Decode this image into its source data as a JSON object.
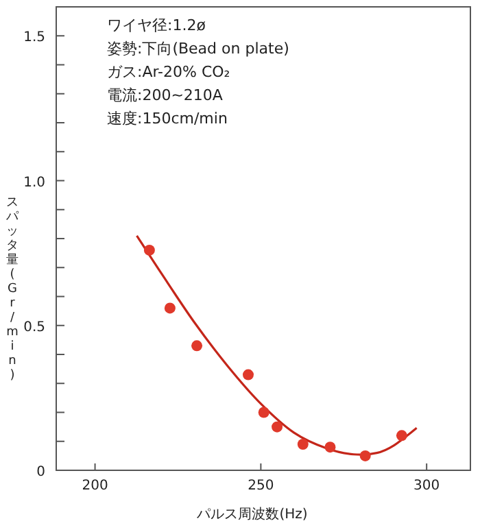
{
  "chart_data": {
    "type": "scatter",
    "xlabel": "パルス周波数(Hz)",
    "ylabel": "スパッタ量(Gr/min)",
    "annotations": [
      "ワイヤ径:1.2ø",
      "姿勢:下向(Bead on plate)",
      "ガス:Ar-20% CO₂",
      "電流:200~210A",
      "速度:150cm/min"
    ],
    "xlim": [
      188.3,
      313.2
    ],
    "ylim": [
      0,
      1.6
    ],
    "xticks": [
      200,
      250,
      300
    ],
    "yticks": [
      {
        "value": 0,
        "label": "0"
      },
      {
        "value": 0.1,
        "label": null
      },
      {
        "value": 0.2,
        "label": null
      },
      {
        "value": 0.3,
        "label": null
      },
      {
        "value": 0.4,
        "label": null
      },
      {
        "value": 0.5,
        "label": "0.5"
      },
      {
        "value": 0.6,
        "label": null
      },
      {
        "value": 0.7,
        "label": null
      },
      {
        "value": 0.8,
        "label": null
      },
      {
        "value": 0.9,
        "label": null
      },
      {
        "value": 1.0,
        "label": "1.0"
      },
      {
        "value": 1.1,
        "label": null
      },
      {
        "value": 1.2,
        "label": null
      },
      {
        "value": 1.3,
        "label": null
      },
      {
        "value": 1.4,
        "label": null
      },
      {
        "value": 1.5,
        "label": "1.5"
      }
    ],
    "series": [
      {
        "marker": "circle",
        "color": "#e0392b",
        "x": [
          216.4,
          222.6,
          230.7,
          246.2,
          250.9,
          254.9,
          262.7,
          270.9,
          281.5,
          292.5
        ],
        "values": [
          0.76,
          0.56,
          0.43,
          0.33,
          0.2,
          0.15,
          0.09,
          0.08,
          0.05,
          0.12
        ]
      },
      {
        "type": "line",
        "marker": "none",
        "color": "#c4261a",
        "x": [
          212.6,
          220,
          230,
          240,
          250,
          260,
          270,
          278,
          285,
          290,
          297
        ],
        "values": [
          0.81,
          0.68,
          0.51,
          0.36,
          0.23,
          0.13,
          0.075,
          0.055,
          0.06,
          0.085,
          0.146
        ]
      }
    ]
  }
}
